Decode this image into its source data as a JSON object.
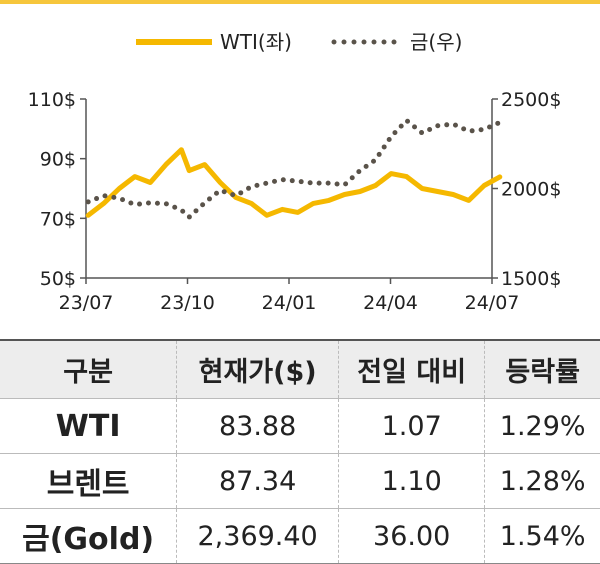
{
  "chart_data": {
    "type": "line",
    "legend": {
      "placement": "top-center"
    },
    "x_ticks": [
      "23/07",
      "23/10",
      "24/01",
      "24/04",
      "24/07"
    ],
    "y_left": {
      "ticks": [
        "110$",
        "90$",
        "70$",
        "50$"
      ],
      "range": [
        50,
        110
      ]
    },
    "y_right": {
      "ticks": [
        "2500$",
        "2000$",
        "1500$"
      ],
      "range": [
        1500,
        2500
      ]
    },
    "series": [
      {
        "name": "WTI(좌)",
        "axis": "left",
        "style": "solid",
        "color": "#f5b800",
        "x": [
          "2023-07-03",
          "2023-07-17",
          "2023-07-31",
          "2023-08-14",
          "2023-08-28",
          "2023-09-11",
          "2023-09-25",
          "2023-10-02",
          "2023-10-16",
          "2023-10-30",
          "2023-11-13",
          "2023-11-27",
          "2023-12-11",
          "2023-12-25",
          "2024-01-08",
          "2024-01-22",
          "2024-02-05",
          "2024-02-19",
          "2024-03-04",
          "2024-03-18",
          "2024-04-01",
          "2024-04-15",
          "2024-04-29",
          "2024-05-13",
          "2024-05-27",
          "2024-06-10",
          "2024-06-24",
          "2024-07-08"
        ],
        "values": [
          71,
          75,
          80,
          84,
          82,
          88,
          93,
          86,
          88,
          82,
          77,
          75,
          71,
          73,
          72,
          75,
          76,
          78,
          79,
          81,
          85,
          84,
          80,
          79,
          78,
          76,
          81,
          83.88
        ]
      },
      {
        "name": "금(우)",
        "axis": "right",
        "style": "dotted",
        "color": "#5a534a",
        "x": [
          "2023-07-03",
          "2023-07-17",
          "2023-07-31",
          "2023-08-14",
          "2023-08-28",
          "2023-09-11",
          "2023-09-25",
          "2023-10-02",
          "2023-10-16",
          "2023-10-30",
          "2023-11-13",
          "2023-11-27",
          "2023-12-11",
          "2023-12-25",
          "2024-01-08",
          "2024-01-22",
          "2024-02-05",
          "2024-02-19",
          "2024-03-04",
          "2024-03-18",
          "2024-04-01",
          "2024-04-15",
          "2024-04-29",
          "2024-05-13",
          "2024-05-27",
          "2024-06-10",
          "2024-06-24",
          "2024-07-08"
        ],
        "values": [
          1925,
          1960,
          1945,
          1910,
          1920,
          1915,
          1880,
          1840,
          1920,
          1990,
          1960,
          2010,
          2030,
          2050,
          2040,
          2030,
          2030,
          2020,
          2100,
          2160,
          2290,
          2380,
          2310,
          2350,
          2360,
          2320,
          2330,
          2369.4
        ]
      }
    ]
  },
  "table": {
    "headers": [
      "구분",
      "현재가($)",
      "전일 대비",
      "등락률"
    ],
    "rows": [
      [
        "WTI",
        "83.88",
        "1.07",
        "1.29%"
      ],
      [
        "브렌트",
        "87.34",
        "1.10",
        "1.28%"
      ],
      [
        "금(Gold)",
        "2,369.40",
        "36.00",
        "1.54%"
      ]
    ]
  }
}
